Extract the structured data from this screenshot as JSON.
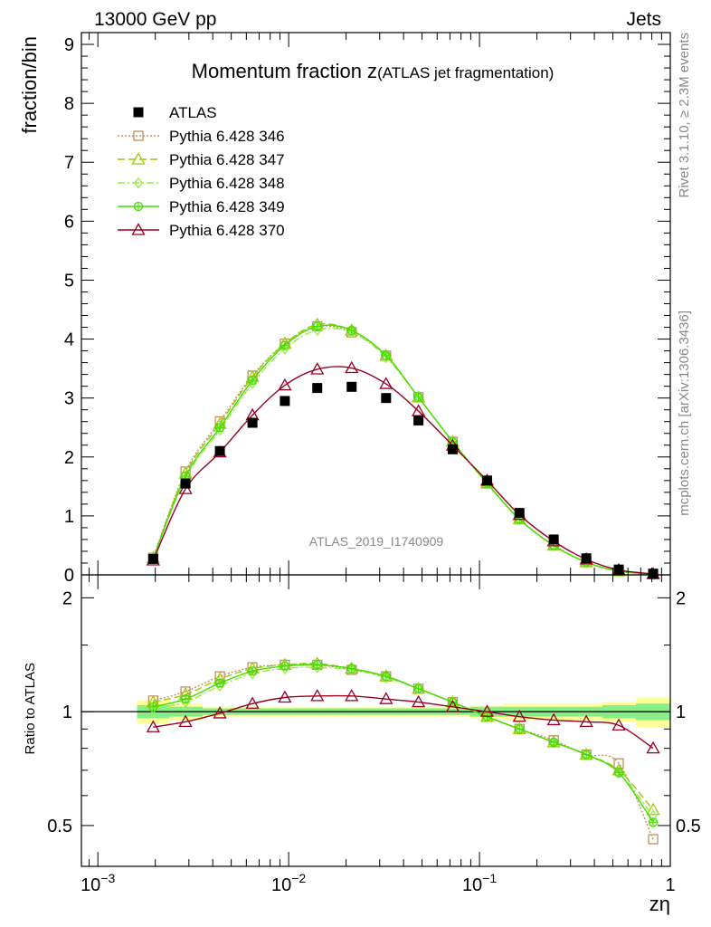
{
  "header": {
    "left": "13000 GeV pp",
    "right": "Jets"
  },
  "side": {
    "rivet": "Rivet 3.1.10, ≥ 2.3M events",
    "mcplots": "mcplots.cern.ch [arXiv:1306.3436]"
  },
  "watermark": "ATLAS_2019_I1740909",
  "colors": {
    "atlas": "#000000",
    "p346": "#c09060",
    "p347": "#99cc00",
    "p348": "#99ee44",
    "p349": "#44dd00",
    "p370": "#990022",
    "band_stat": "#88ee88",
    "band_syst": "#ffff99"
  },
  "chart_data": {
    "type": "line",
    "title_main": "Momentum fraction z",
    "title_sub": "(ATLAS jet fragmentation)",
    "ylabel_top": "fraction/bin",
    "ylabel_bottom": "Ratio to ATLAS",
    "xlabel": "zη",
    "x_scale": "log",
    "xlim": [
      0.00082,
      1.0
    ],
    "ylim_top": [
      0,
      9.2
    ],
    "ylim_bottom": [
      0.39,
      2.3
    ],
    "xticks": [
      {
        "value": 0.001,
        "base": "10",
        "exp": "−3"
      },
      {
        "value": 0.01,
        "base": "10",
        "exp": "−2"
      },
      {
        "value": 0.1,
        "base": "10",
        "exp": "−1"
      },
      {
        "value": 1,
        "base": "1",
        "exp": ""
      }
    ],
    "yticks_top": [
      "0",
      "1",
      "2",
      "3",
      "4",
      "5",
      "6",
      "7",
      "8",
      "9"
    ],
    "yticks_bottom": [
      "0.5",
      "1",
      "2"
    ],
    "x": [
      0.00195,
      0.00288,
      0.00436,
      0.00646,
      0.00955,
      0.01412,
      0.02138,
      0.0324,
      0.0479,
      0.0724,
      0.1096,
      0.162,
      0.245,
      0.363,
      0.537,
      0.813
    ],
    "atlas": [
      0.27,
      1.55,
      2.1,
      2.58,
      2.95,
      3.17,
      3.19,
      3.0,
      2.62,
      2.13,
      1.6,
      1.05,
      0.6,
      0.28,
      0.09,
      0.02
    ],
    "legend": [
      {
        "key": "atlas",
        "label": "ATLAS",
        "marker": "square-filled",
        "dash": ""
      },
      {
        "key": "p346",
        "label": "Pythia 6.428 346",
        "marker": "square-open",
        "dash": "2,2"
      },
      {
        "key": "p347",
        "label": "Pythia 6.428 347",
        "marker": "triangle-open",
        "dash": "8,4"
      },
      {
        "key": "p348",
        "label": "Pythia 6.428 348",
        "marker": "diamond-open",
        "dash": "8,3,2,3"
      },
      {
        "key": "p349",
        "label": "Pythia 6.428 349",
        "marker": "cross-circle",
        "dash": ""
      },
      {
        "key": "p370",
        "label": "Pythia 6.428 370",
        "marker": "triangle-open",
        "dash": ""
      }
    ],
    "series": [
      {
        "key": "p346",
        "ratio": [
          1.07,
          1.13,
          1.24,
          1.31,
          1.33,
          1.33,
          1.29,
          1.24,
          1.15,
          1.06,
          0.97,
          0.9,
          0.84,
          0.77,
          0.73,
          0.46
        ]
      },
      {
        "key": "p347",
        "ratio": [
          1.06,
          1.11,
          1.22,
          1.3,
          1.33,
          1.34,
          1.3,
          1.24,
          1.15,
          1.06,
          0.97,
          0.9,
          0.83,
          0.77,
          0.7,
          0.55
        ]
      },
      {
        "key": "p348",
        "ratio": [
          1.02,
          1.06,
          1.17,
          1.26,
          1.3,
          1.31,
          1.29,
          1.23,
          1.15,
          1.06,
          0.97,
          0.9,
          0.83,
          0.77,
          0.69,
          0.53
        ]
      },
      {
        "key": "p349",
        "ratio": [
          1.03,
          1.08,
          1.19,
          1.28,
          1.32,
          1.33,
          1.3,
          1.24,
          1.15,
          1.06,
          0.97,
          0.9,
          0.83,
          0.77,
          0.69,
          0.51
        ]
      },
      {
        "key": "p370",
        "ratio": [
          0.91,
          0.94,
          0.99,
          1.05,
          1.09,
          1.1,
          1.1,
          1.08,
          1.06,
          1.03,
          1.0,
          0.97,
          0.95,
          0.94,
          0.92,
          0.8
        ]
      }
    ],
    "bands": {
      "stat": [
        0.04,
        0.03,
        0.02,
        0.02,
        0.02,
        0.02,
        0.02,
        0.02,
        0.02,
        0.02,
        0.03,
        0.03,
        0.03,
        0.03,
        0.04,
        0.05
      ],
      "syst": [
        0.07,
        0.05,
        0.03,
        0.03,
        0.03,
        0.03,
        0.03,
        0.03,
        0.03,
        0.03,
        0.04,
        0.05,
        0.05,
        0.05,
        0.06,
        0.09
      ]
    }
  }
}
